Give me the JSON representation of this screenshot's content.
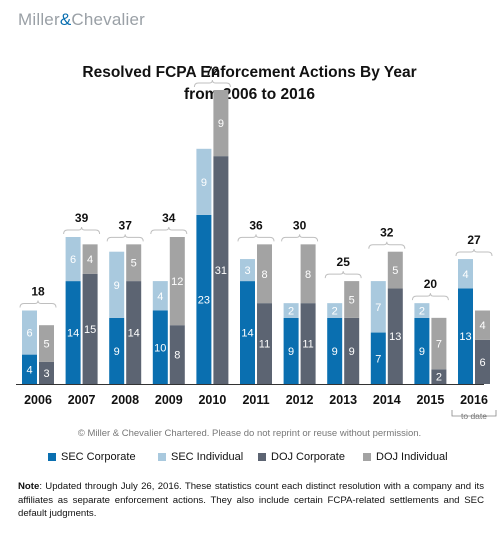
{
  "brand": {
    "left": "Miller",
    "amp": "&",
    "right": "Chevalier"
  },
  "title_line1": "Resolved FCPA Enforcement Actions By Year",
  "title_line2": "from 2006 to 2016",
  "copyright": "© Miller & Chevalier Chartered. Please do not reprint or reuse without permission.",
  "note_label": "Note",
  "note_text": ": Updated through July 26, 2016. These statistics count each distinct resolution with a company and its affiliates as separate enforcement actions. They also include certain FCPA-related settlements and SEC default judgments.",
  "colors": {
    "sec_corporate": "#0a6fb0",
    "sec_individual": "#a9c9de",
    "doj_corporate": "#5c6472",
    "doj_individual": "#a3a3a3"
  },
  "chart_data": {
    "type": "bar",
    "title": "Resolved FCPA Enforcement Actions By Year from 2006 to 2016",
    "categories": [
      "2006",
      "2007",
      "2008",
      "2009",
      "2010",
      "2011",
      "2012",
      "2013",
      "2014",
      "2015",
      "2016"
    ],
    "category_note": {
      "index": 10,
      "text": "to date"
    },
    "grouping": "two stacked columns per year (SEC, DOJ)",
    "series": [
      {
        "name": "SEC Corporate",
        "stack": "SEC",
        "values": [
          4,
          14,
          9,
          10,
          23,
          14,
          9,
          9,
          7,
          9,
          13
        ]
      },
      {
        "name": "SEC Individual",
        "stack": "SEC",
        "values": [
          6,
          6,
          9,
          4,
          9,
          3,
          2,
          2,
          7,
          2,
          4
        ]
      },
      {
        "name": "DOJ Corporate",
        "stack": "DOJ",
        "values": [
          3,
          15,
          14,
          8,
          31,
          11,
          11,
          9,
          13,
          2,
          6
        ]
      },
      {
        "name": "DOJ Individual",
        "stack": "DOJ",
        "values": [
          5,
          4,
          5,
          12,
          9,
          8,
          8,
          5,
          5,
          7,
          4
        ]
      }
    ],
    "totals": [
      18,
      39,
      37,
      34,
      72,
      36,
      30,
      25,
      32,
      20,
      27
    ],
    "ylim": [
      0,
      40
    ],
    "grid": false,
    "legend": "bottom"
  }
}
